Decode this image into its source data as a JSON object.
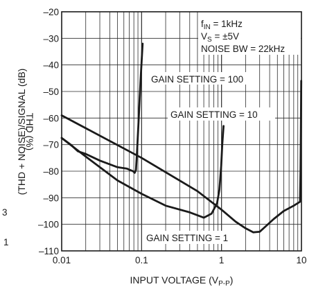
{
  "chart_data": {
    "type": "line",
    "xlabel": "INPUT VOLTAGE (V",
    "xlabel_sub": "P-P",
    "xlabel_close": ")",
    "ylabel_line1": "THD (%)",
    "ylabel_line2": "(THD + NOISE)/SIGNAL (dB)",
    "x_scale": "log",
    "xlim": [
      0.01,
      10
    ],
    "ylim": [
      -110,
      -20
    ],
    "grid": true,
    "x_ticks": [
      {
        "value": 0.01,
        "label": "0.01"
      },
      {
        "value": 0.1,
        "label": "0.1"
      },
      {
        "value": 1,
        "label": "1"
      },
      {
        "value": 10,
        "label": "10"
      }
    ],
    "y_ticks": [
      {
        "value": -20,
        "label": "–20"
      },
      {
        "value": -30,
        "label": "–30"
      },
      {
        "value": -40,
        "label": "–40"
      },
      {
        "value": -50,
        "label": "–50"
      },
      {
        "value": -60,
        "label": "–60"
      },
      {
        "value": -70,
        "label": "–70"
      },
      {
        "value": -80,
        "label": "–80"
      },
      {
        "value": -90,
        "label": "–90"
      },
      {
        "value": -100,
        "label": "–100"
      },
      {
        "value": -110,
        "label": "–110"
      }
    ],
    "left_edge_labels": [
      "3",
      "1"
    ],
    "conditions": [
      {
        "text": "f",
        "sub": "IN",
        "rest": " = 1kHz"
      },
      {
        "text": "V",
        "sub": "S",
        "rest": " = ±5V"
      },
      {
        "text": "NOISE BW = 22kHz",
        "sub": "",
        "rest": ""
      }
    ],
    "series": [
      {
        "label": "GAIN SETTING = 100",
        "color": "#1a1a1a",
        "points": [
          [
            0.01,
            -67.5
          ],
          [
            0.013,
            -70
          ],
          [
            0.016,
            -72.5
          ],
          [
            0.02,
            -73.5
          ],
          [
            0.03,
            -76
          ],
          [
            0.05,
            -78.5
          ],
          [
            0.065,
            -79
          ],
          [
            0.078,
            -80
          ],
          [
            0.082,
            -80.6
          ],
          [
            0.085,
            -79.5
          ],
          [
            0.088,
            -72
          ],
          [
            0.092,
            -60
          ],
          [
            0.097,
            -46
          ],
          [
            0.103,
            -32
          ]
        ]
      },
      {
        "label": "GAIN SETTING = 10",
        "color": "#1a1a1a",
        "points": [
          [
            0.01,
            -67.5
          ],
          [
            0.02,
            -74.5
          ],
          [
            0.05,
            -83.5
          ],
          [
            0.1,
            -88.5
          ],
          [
            0.2,
            -93
          ],
          [
            0.4,
            -95.5
          ],
          [
            0.6,
            -97.5
          ],
          [
            0.75,
            -96
          ],
          [
            0.88,
            -92
          ],
          [
            0.94,
            -87
          ],
          [
            0.99,
            -78
          ],
          [
            1.02,
            -70
          ],
          [
            1.06,
            -63
          ]
        ]
      },
      {
        "label": "GAIN SETTING = 1",
        "color": "#1a1a1a",
        "points": [
          [
            0.01,
            -59
          ],
          [
            0.1,
            -75
          ],
          [
            0.5,
            -87.5
          ],
          [
            1,
            -94.5
          ],
          [
            1.5,
            -99
          ],
          [
            2,
            -101.5
          ],
          [
            2.5,
            -103
          ],
          [
            3,
            -102.8
          ],
          [
            3.5,
            -101
          ],
          [
            4.5,
            -98
          ],
          [
            6,
            -95
          ],
          [
            8,
            -93
          ],
          [
            9.6,
            -91.5
          ],
          [
            9.75,
            -80
          ],
          [
            9.85,
            -65
          ],
          [
            9.95,
            -46
          ]
        ]
      }
    ],
    "annotations": [
      {
        "text": "GAIN SETTING = 100",
        "series": 0
      },
      {
        "text": "GAIN SETTING = 10",
        "series": 1
      },
      {
        "text": "GAIN SETTING = 1",
        "series": 2
      }
    ]
  }
}
